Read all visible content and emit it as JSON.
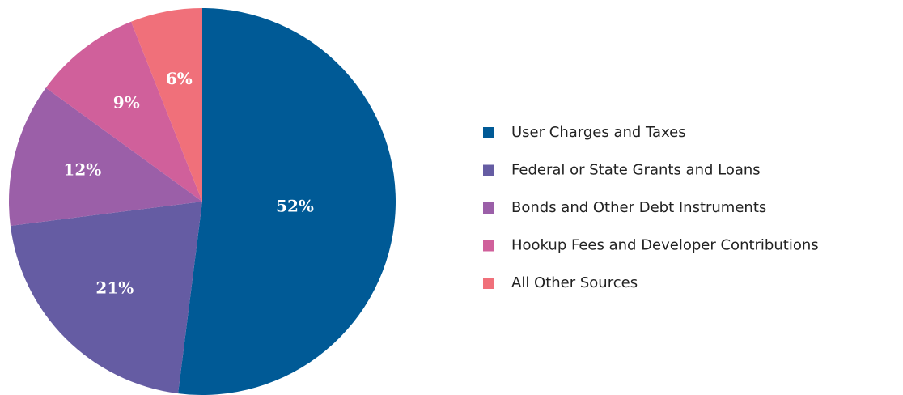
{
  "chart_data": {
    "type": "pie",
    "categories": [
      "User Charges and Taxes",
      "Federal or State Grants and Loans",
      "Bonds and Other Debt Instruments",
      "Hookup Fees and Developer Contributions",
      "All Other Sources"
    ],
    "values": [
      52,
      21,
      12,
      9,
      6
    ],
    "value_labels": [
      "52%",
      "21%",
      "12%",
      "9%",
      "6%"
    ],
    "colors": [
      "#005a96",
      "#655ca3",
      "#9b5fa8",
      "#d0609b",
      "#f0707a"
    ],
    "legend": "right"
  }
}
